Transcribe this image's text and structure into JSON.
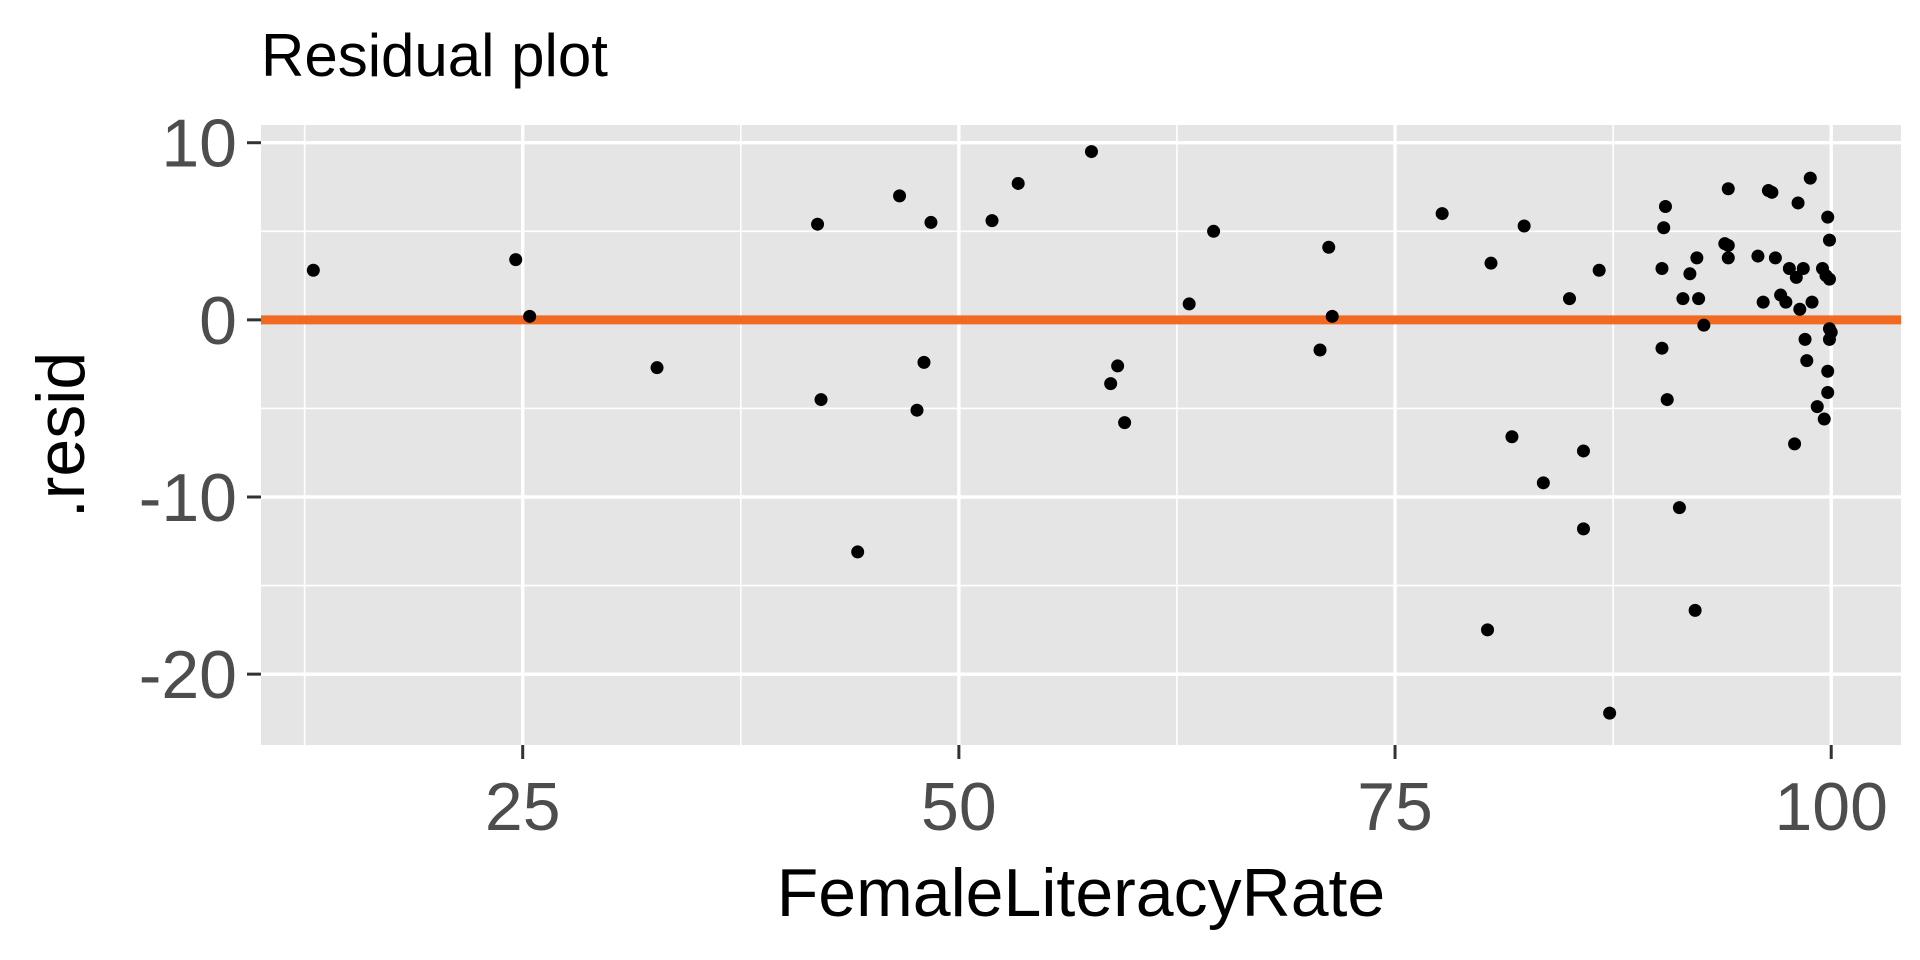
{
  "chart_data": {
    "type": "scatter",
    "title": "Residual plot",
    "xlabel": "FemaleLiteracyRate",
    "ylabel": ".resid",
    "xlim": [
      10,
      104
    ],
    "ylim": [
      -24,
      11
    ],
    "x_ticks": [
      25,
      50,
      75,
      100
    ],
    "x_tick_labels": [
      "25",
      "50",
      "75",
      "100"
    ],
    "x_minor_ticks": [
      12.5,
      37.5,
      62.5,
      87.5
    ],
    "y_ticks": [
      10,
      0,
      -10,
      -20
    ],
    "y_tick_labels": [
      "10",
      "0",
      "-10",
      "-20"
    ],
    "y_minor_ticks": [
      5,
      -5,
      -15
    ],
    "grid": true,
    "legend": "none",
    "reference_line": {
      "y": 0,
      "color": "#f26a21"
    },
    "colors": {
      "panel_background": "#e5e5e5",
      "grid": "#ffffff",
      "points": "#000000",
      "reference_line": "#f26a21",
      "tick_label": "#4d4d4d"
    },
    "points": [
      {
        "x": 13.0,
        "y": 2.8
      },
      {
        "x": 24.6,
        "y": 3.4
      },
      {
        "x": 25.4,
        "y": 0.2
      },
      {
        "x": 32.7,
        "y": -2.7
      },
      {
        "x": 41.9,
        "y": 5.4
      },
      {
        "x": 42.1,
        "y": -4.5
      },
      {
        "x": 44.2,
        "y": -13.1
      },
      {
        "x": 46.6,
        "y": 7.0
      },
      {
        "x": 47.6,
        "y": -5.1
      },
      {
        "x": 48.0,
        "y": -2.4
      },
      {
        "x": 48.4,
        "y": 5.5
      },
      {
        "x": 51.9,
        "y": 5.6
      },
      {
        "x": 53.4,
        "y": 7.7
      },
      {
        "x": 57.6,
        "y": 9.5
      },
      {
        "x": 58.7,
        "y": -3.6
      },
      {
        "x": 59.1,
        "y": -2.6
      },
      {
        "x": 59.5,
        "y": -5.8
      },
      {
        "x": 63.2,
        "y": 0.9
      },
      {
        "x": 64.6,
        "y": 5.0
      },
      {
        "x": 70.7,
        "y": -1.7
      },
      {
        "x": 71.2,
        "y": 4.1
      },
      {
        "x": 71.4,
        "y": 0.2
      },
      {
        "x": 77.7,
        "y": 6.0
      },
      {
        "x": 80.3,
        "y": -17.5
      },
      {
        "x": 80.5,
        "y": 3.2
      },
      {
        "x": 81.7,
        "y": -6.6
      },
      {
        "x": 82.4,
        "y": 5.3
      },
      {
        "x": 83.5,
        "y": -9.2
      },
      {
        "x": 85.0,
        "y": 1.2
      },
      {
        "x": 85.8,
        "y": -7.4
      },
      {
        "x": 85.8,
        "y": -11.8
      },
      {
        "x": 86.7,
        "y": 2.8
      },
      {
        "x": 87.3,
        "y": -22.2
      },
      {
        "x": 90.3,
        "y": -1.6
      },
      {
        "x": 90.3,
        "y": 2.9
      },
      {
        "x": 90.4,
        "y": 5.2
      },
      {
        "x": 90.5,
        "y": 6.4
      },
      {
        "x": 90.6,
        "y": -4.5
      },
      {
        "x": 91.3,
        "y": -10.6
      },
      {
        "x": 91.5,
        "y": 1.2
      },
      {
        "x": 91.9,
        "y": 2.6
      },
      {
        "x": 92.2,
        "y": -16.4
      },
      {
        "x": 92.3,
        "y": 3.5
      },
      {
        "x": 92.4,
        "y": 1.2
      },
      {
        "x": 92.7,
        "y": -0.3
      },
      {
        "x": 93.9,
        "y": 4.3
      },
      {
        "x": 94.1,
        "y": 3.5
      },
      {
        "x": 94.1,
        "y": 7.4
      },
      {
        "x": 94.1,
        "y": 4.2
      },
      {
        "x": 95.8,
        "y": 3.6
      },
      {
        "x": 96.1,
        "y": 1.0
      },
      {
        "x": 96.4,
        "y": 7.3
      },
      {
        "x": 96.6,
        "y": 7.2
      },
      {
        "x": 96.8,
        "y": 3.5
      },
      {
        "x": 97.1,
        "y": 1.4
      },
      {
        "x": 97.4,
        "y": 1.0
      },
      {
        "x": 97.6,
        "y": 2.9
      },
      {
        "x": 97.9,
        "y": -7.0
      },
      {
        "x": 98.0,
        "y": 2.4
      },
      {
        "x": 98.1,
        "y": 6.6
      },
      {
        "x": 98.2,
        "y": 0.6
      },
      {
        "x": 98.4,
        "y": 2.9
      },
      {
        "x": 98.5,
        "y": -1.1
      },
      {
        "x": 98.6,
        "y": -2.3
      },
      {
        "x": 98.8,
        "y": 8.0
      },
      {
        "x": 98.9,
        "y": 1.0
      },
      {
        "x": 99.2,
        "y": -4.9
      },
      {
        "x": 99.5,
        "y": 2.9
      },
      {
        "x": 99.6,
        "y": -5.6
      },
      {
        "x": 99.7,
        "y": 2.5
      },
      {
        "x": 99.8,
        "y": 5.8
      },
      {
        "x": 99.8,
        "y": -4.1
      },
      {
        "x": 99.8,
        "y": -2.9
      },
      {
        "x": 99.9,
        "y": -0.5
      },
      {
        "x": 99.9,
        "y": -1.1
      },
      {
        "x": 99.9,
        "y": 4.5
      },
      {
        "x": 99.9,
        "y": 2.3
      },
      {
        "x": 100.0,
        "y": -0.7
      }
    ]
  }
}
